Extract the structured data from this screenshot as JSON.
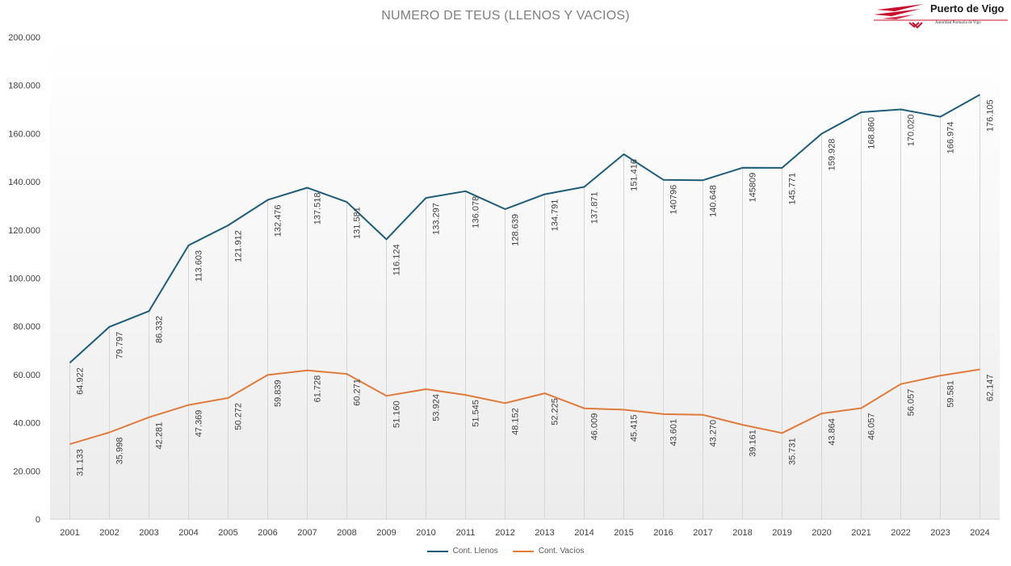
{
  "chart_data": {
    "type": "line",
    "title": "NUMERO DE TEUS (LLENOS Y VACIOS)",
    "x": [
      "2001",
      "2002",
      "2003",
      "2004",
      "2005",
      "2006",
      "2007",
      "2008",
      "2009",
      "2010",
      "2011",
      "2012",
      "2013",
      "2014",
      "2015",
      "2016",
      "2017",
      "2018",
      "2019",
      "2020",
      "2021",
      "2022",
      "2023",
      "2024"
    ],
    "ylim": [
      0,
      200000
    ],
    "yticks": [
      "0",
      "20.000",
      "40.000",
      "60.000",
      "80.000",
      "100.000",
      "120.000",
      "140.000",
      "160.000",
      "180.000",
      "200.000"
    ],
    "series": [
      {
        "name": "Cont. Llenos",
        "color": "#1f5c7a",
        "values": [
          64922,
          79797,
          86332,
          113603,
          121912,
          132476,
          137518,
          131581,
          116124,
          133297,
          136078,
          128639,
          134791,
          137871,
          151416,
          140796,
          140648,
          145809,
          145771,
          159928,
          168860,
          170020,
          166974,
          176105
        ],
        "labels": [
          "64.922",
          "79.797",
          "86.332",
          "113.603",
          "121.912",
          "132.476",
          "137.518",
          "131.581",
          "116.124",
          "133.297",
          "136.078",
          "128.639",
          "134.791",
          "137.871",
          "151.416",
          "140796",
          "140.648",
          "145809",
          "145.771",
          "159.928",
          "168.860",
          "170.020",
          "166.974",
          "176.105"
        ]
      },
      {
        "name": "Cont. Vacíos",
        "color": "#e07b3c",
        "values": [
          31133,
          35998,
          42281,
          47369,
          50272,
          59839,
          61728,
          60271,
          51160,
          53924,
          51545,
          48152,
          52225,
          46009,
          45415,
          43601,
          43270,
          39161,
          35731,
          43864,
          46057,
          56057,
          59581,
          62147
        ],
        "labels": [
          "31.133",
          "35.998",
          "42.281",
          "47.369",
          "50.272",
          "59.839",
          "61.728",
          "60.271",
          "51.160",
          "53.924",
          "51.545",
          "48.152",
          "52.225",
          "46.009",
          "45.415",
          "43.601",
          "43.270",
          "39.161",
          "35.731",
          "43.864",
          "46.057",
          "56.057",
          "59.581",
          "62.147"
        ]
      }
    ],
    "grid": "vertical",
    "legend": "bottom-center"
  },
  "logo": {
    "name": "Puerto de Vigo",
    "subtitle": "Autoridad Portuaria de Vigo",
    "color": "#c8102e"
  }
}
